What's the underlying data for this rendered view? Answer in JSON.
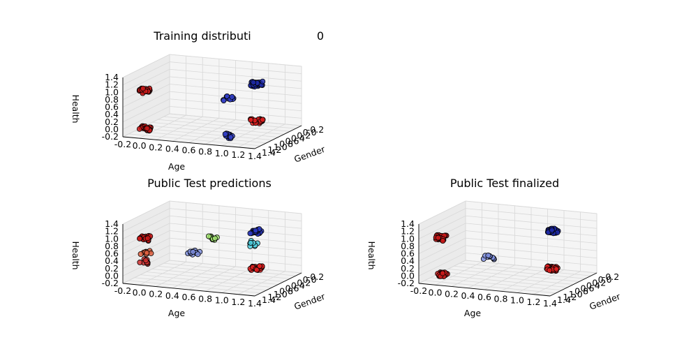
{
  "figure": {
    "stray_mark": "0"
  },
  "chart_data": [
    {
      "type": "scatter",
      "title": "Training distributi",
      "xlabel": "Age",
      "ylabel": "Gender",
      "zlabel": "Health",
      "xticks": [
        "-0.2",
        "0.0",
        "0.2",
        "0.4",
        "0.6",
        "0.8",
        "1.0",
        "1.2",
        "1.4"
      ],
      "yticks": [
        "-0.2",
        "0.0",
        "0.2",
        "0.4",
        "0.6",
        "0.8",
        "1.0",
        "1.2",
        "1.4"
      ],
      "zticks": [
        "-0.2",
        "0.0",
        "0.2",
        "0.4",
        "0.6",
        "0.8",
        "1.0",
        "1.2",
        "1.4"
      ],
      "xlim": [
        -0.2,
        1.4
      ],
      "ylim": [
        -0.2,
        1.4
      ],
      "zlim": [
        -0.2,
        1.4
      ],
      "grid": true,
      "clusters": [
        {
          "x": 0,
          "y": 0,
          "z": 0,
          "n": 30,
          "color": "#cc1a1a"
        },
        {
          "x": 0,
          "y": 0,
          "z": 1,
          "n": 30,
          "color": "#cc1a1a"
        },
        {
          "x": 1,
          "y": 0,
          "z": 0,
          "n": 14,
          "color": "#3340c8"
        },
        {
          "x": 1,
          "y": 0,
          "z": 1,
          "n": 14,
          "color": "#3340c8"
        },
        {
          "x": 1,
          "y": 1,
          "z": 0,
          "n": 30,
          "color": "#e02020"
        },
        {
          "x": 1,
          "y": 1,
          "z": 1,
          "n": 30,
          "color": "#1e2aa8"
        }
      ]
    },
    {
      "type": "scatter",
      "title": "Public Test predictions",
      "xlabel": "Age",
      "ylabel": "Gender",
      "zlabel": "Health",
      "xticks": [
        "-0.2",
        "0.0",
        "0.2",
        "0.4",
        "0.6",
        "0.8",
        "1.0",
        "1.2",
        "1.4"
      ],
      "yticks": [
        "-0.2",
        "0.0",
        "0.2",
        "0.4",
        "0.6",
        "0.8",
        "1.0",
        "1.2",
        "1.4"
      ],
      "zticks": [
        "-0.2",
        "0.0",
        "0.2",
        "0.4",
        "0.6",
        "0.8",
        "1.0",
        "1.2",
        "1.4"
      ],
      "xlim": [
        -0.2,
        1.4
      ],
      "ylim": [
        -0.2,
        1.4
      ],
      "zlim": [
        -0.2,
        1.4
      ],
      "grid": true,
      "clusters": [
        {
          "x": 0,
          "y": 0,
          "z": 1,
          "n": 24,
          "color": "#cc1a1a"
        },
        {
          "x": 0,
          "y": 0,
          "z": 0.35,
          "n": 10,
          "color": "#d03030"
        },
        {
          "x": 0,
          "y": 0,
          "z": 0.6,
          "n": 8,
          "color": "#e06040"
        },
        {
          "x": 0.55,
          "y": 0.1,
          "z": 0.65,
          "n": 12,
          "color": "#8090e0"
        },
        {
          "x": 0.7,
          "y": 0.3,
          "z": 1.0,
          "n": 8,
          "color": "#a0e070"
        },
        {
          "x": 1,
          "y": 1,
          "z": 0,
          "n": 28,
          "color": "#e02020"
        },
        {
          "x": 1,
          "y": 1,
          "z": 1,
          "n": 24,
          "color": "#2a38c0"
        },
        {
          "x": 1,
          "y": 0.9,
          "z": 0.7,
          "n": 8,
          "color": "#50d0e0"
        }
      ]
    },
    {
      "type": "scatter",
      "title": "Public Test finalized",
      "xlabel": "Age",
      "ylabel": "Gender",
      "zlabel": "Health",
      "xticks": [
        "-0.2",
        "0.0",
        "0.2",
        "0.4",
        "0.6",
        "0.8",
        "1.0",
        "1.2",
        "1.4"
      ],
      "yticks": [
        "-0.2",
        "0.0",
        "0.2",
        "0.4",
        "0.6",
        "0.8",
        "1.0",
        "1.2",
        "1.4"
      ],
      "zticks": [
        "-0.2",
        "0.0",
        "0.2",
        "0.4",
        "0.6",
        "0.8",
        "1.0",
        "1.2",
        "1.4"
      ],
      "xlim": [
        -0.2,
        1.4
      ],
      "ylim": [
        -0.2,
        1.4
      ],
      "zlim": [
        -0.2,
        1.4
      ],
      "grid": true,
      "clusters": [
        {
          "x": 0,
          "y": 0,
          "z": 1,
          "n": 28,
          "color": "#cc1a1a"
        },
        {
          "x": 0,
          "y": 0,
          "z": 0,
          "n": 14,
          "color": "#cc1a1a"
        },
        {
          "x": 0.55,
          "y": 0.1,
          "z": 0.55,
          "n": 10,
          "color": "#8090e0"
        },
        {
          "x": 1,
          "y": 1,
          "z": 0,
          "n": 30,
          "color": "#e02020"
        },
        {
          "x": 1,
          "y": 1,
          "z": 1,
          "n": 28,
          "color": "#1e2aa8"
        }
      ]
    }
  ]
}
